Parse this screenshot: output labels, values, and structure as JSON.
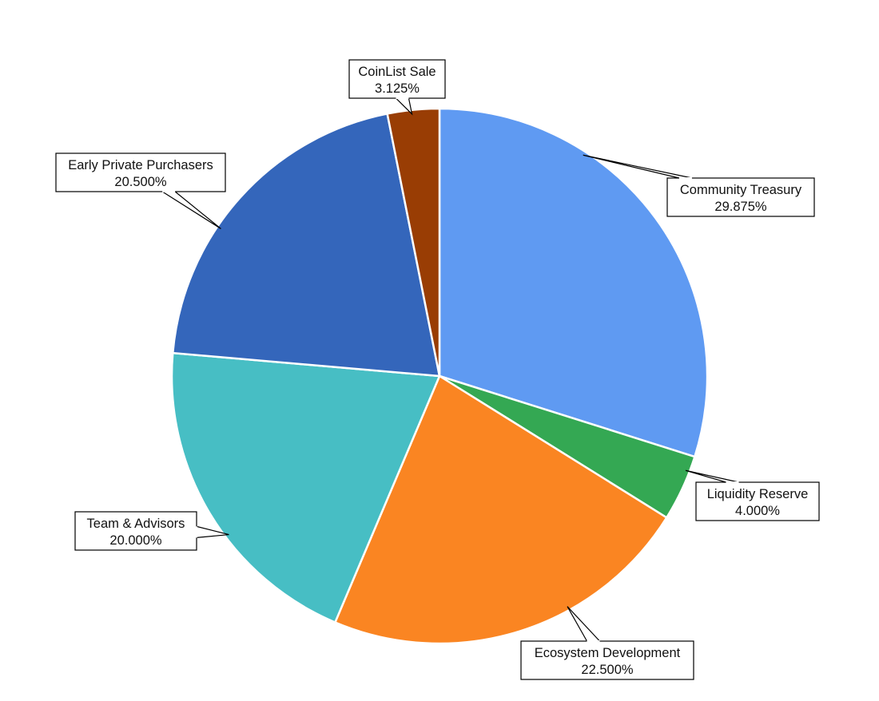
{
  "chart_data": {
    "type": "pie",
    "title": "",
    "start_angle_deg": 0,
    "direction": "clockwise",
    "slices": [
      {
        "label": "Community Treasury",
        "value": 29.875,
        "display": "29.875%",
        "color": "#5f9af2"
      },
      {
        "label": "Liquidity Reserve",
        "value": 4.0,
        "display": "4.000%",
        "color": "#34a853"
      },
      {
        "label": "Ecosystem Development",
        "value": 22.5,
        "display": "22.500%",
        "color": "#fa8522"
      },
      {
        "label": "Team & Advisors",
        "value": 20.0,
        "display": "20.000%",
        "color": "#47bec4"
      },
      {
        "label": "Early Private Purchasers",
        "value": 20.5,
        "display": "20.500%",
        "color": "#3466bb"
      },
      {
        "label": "CoinList Sale",
        "value": 3.125,
        "display": "3.125%",
        "color": "#993d04"
      }
    ]
  }
}
